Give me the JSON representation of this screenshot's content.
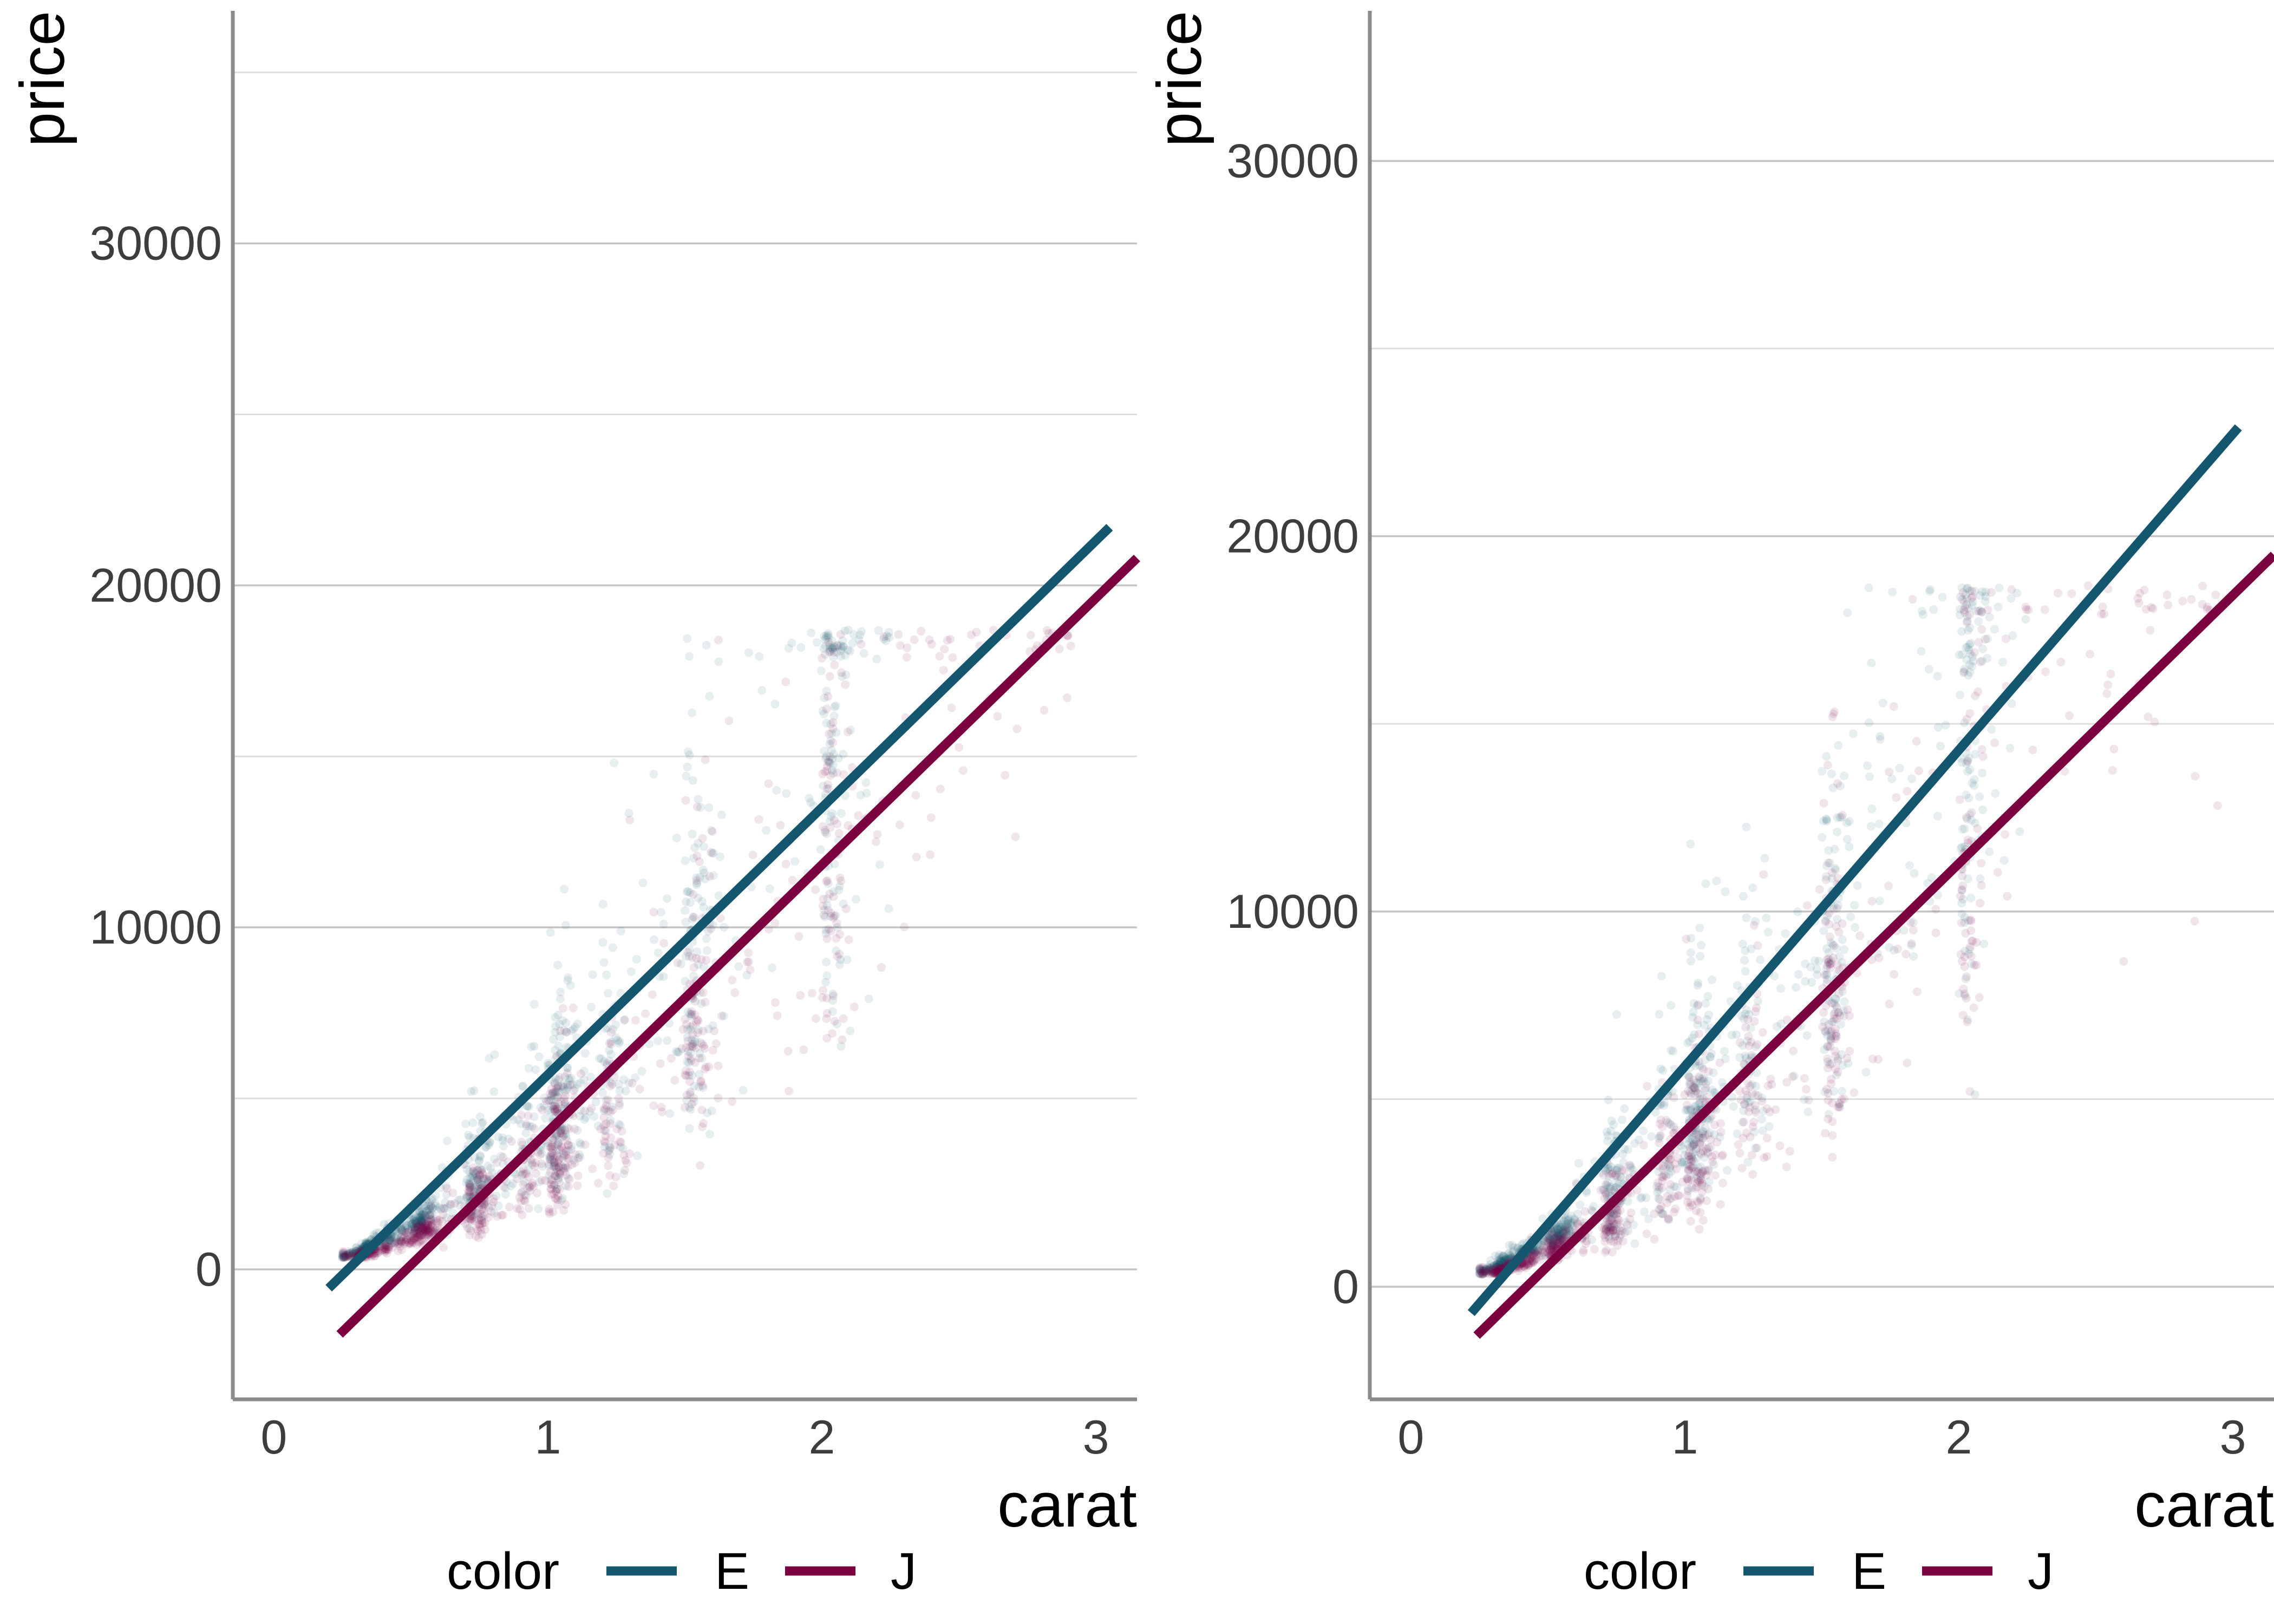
{
  "chart_data": [
    {
      "type": "scatter",
      "title": "",
      "xlabel": "carat",
      "ylabel": "price",
      "xlim": [
        -0.15,
        3.15
      ],
      "ylim": [
        -3800,
        36800
      ],
      "x_ticks": [
        0,
        1,
        2,
        3
      ],
      "y_ticks": [
        0,
        10000,
        20000,
        30000
      ],
      "y_minor_gridlines": [
        5000,
        15000,
        25000,
        35000
      ],
      "grid": "horizontal",
      "legend": {
        "title": "color",
        "placement": "bottom",
        "entries": [
          "E",
          "J"
        ]
      },
      "series": [
        {
          "name": "E",
          "color": "#14566e",
          "fit_line": [
            [
              0.2,
              -550
            ],
            [
              3.05,
              21700
            ]
          ]
        },
        {
          "name": "J",
          "color": "#7a0040",
          "fit_line": [
            [
              0.24,
              -1900
            ],
            [
              3.15,
              20800
            ]
          ]
        }
      ]
    },
    {
      "type": "scatter",
      "title": "",
      "xlabel": "carat",
      "ylabel": "price",
      "xlim": [
        -0.15,
        3.15
      ],
      "ylim": [
        -3000,
        34000
      ],
      "x_ticks": [
        0,
        1,
        2,
        3
      ],
      "y_ticks": [
        0,
        10000,
        20000,
        30000
      ],
      "y_minor_gridlines": [
        5000,
        15000,
        25000
      ],
      "grid": "horizontal",
      "legend": {
        "title": "color",
        "placement": "bottom",
        "entries": [
          "E",
          "J"
        ]
      },
      "series": [
        {
          "name": "E",
          "color": "#14566e",
          "fit_line": [
            [
              0.22,
              -700
            ],
            [
              3.02,
              22900
            ]
          ]
        },
        {
          "name": "J",
          "color": "#7a0040",
          "fit_line": [
            [
              0.24,
              -1300
            ],
            [
              3.15,
              19500
            ]
          ]
        }
      ]
    }
  ]
}
